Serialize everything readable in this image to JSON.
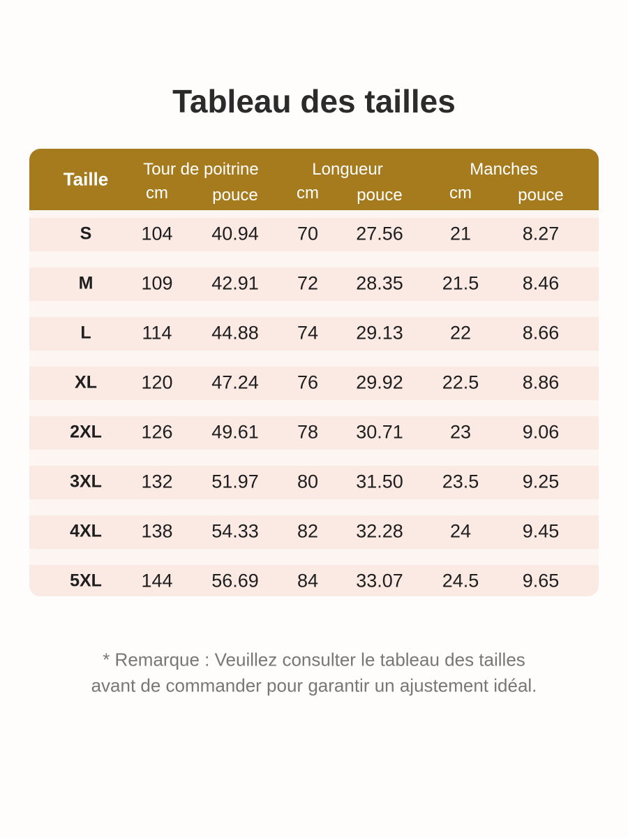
{
  "title": "Tableau des tailles",
  "table": {
    "header": {
      "size": "Taille",
      "groups": [
        {
          "label": "Tour de poitrine",
          "units": [
            "cm",
            "pouce"
          ]
        },
        {
          "label": "Longueur",
          "units": [
            "cm",
            "pouce"
          ]
        },
        {
          "label": "Manches",
          "units": [
            "cm",
            "pouce"
          ]
        }
      ]
    },
    "rows": [
      [
        "S",
        "104",
        "40.94",
        "70",
        "27.56",
        "21",
        "8.27"
      ],
      [
        "M",
        "109",
        "42.91",
        "72",
        "28.35",
        "21.5",
        "8.46"
      ],
      [
        "L",
        "114",
        "44.88",
        "74",
        "29.13",
        "22",
        "8.66"
      ],
      [
        "XL",
        "120",
        "47.24",
        "76",
        "29.92",
        "22.5",
        "8.86"
      ],
      [
        "2XL",
        "126",
        "49.61",
        "78",
        "30.71",
        "23",
        "9.06"
      ],
      [
        "3XL",
        "132",
        "51.97",
        "80",
        "31.50",
        "23.5",
        "9.25"
      ],
      [
        "4XL",
        "138",
        "54.33",
        "82",
        "32.28",
        "24",
        "9.45"
      ],
      [
        "5XL",
        "144",
        "56.69",
        "84",
        "33.07",
        "24.5",
        "9.65"
      ]
    ]
  },
  "note": [
    "* Remarque : Veuillez consulter le tableau des tailles",
    "avant de commander pour garantir un ajustement idéal."
  ]
}
